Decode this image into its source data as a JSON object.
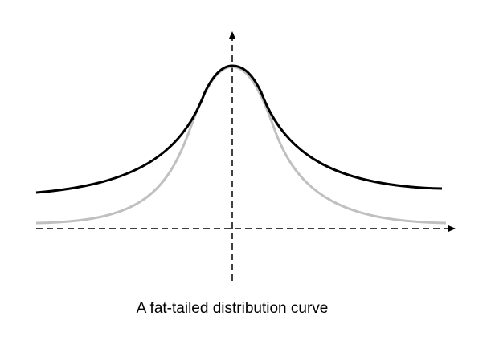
{
  "caption": "A fat-tailed distribution curve"
}
